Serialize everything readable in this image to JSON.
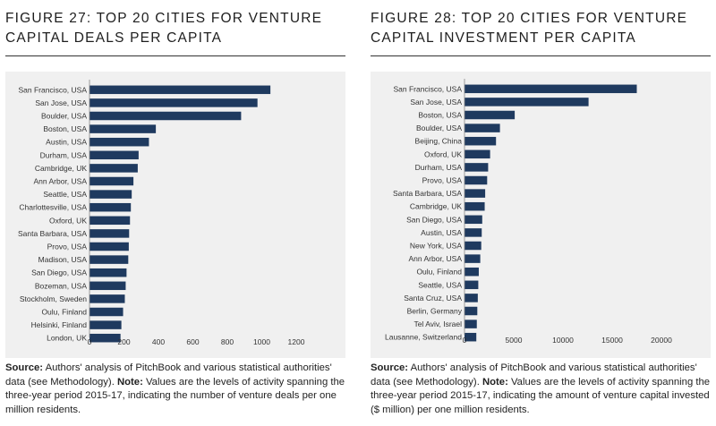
{
  "figure27": {
    "title_line1": "FIGURE 27: TOP 20 CITIES FOR VENTURE",
    "title_line2": "CAPITAL DEALS PER CAPITA",
    "source_label": "Source:",
    "source_text": "Authors' analysis of PitchBook and various statistical authorities' data (see Methodology).",
    "note_label": "Note:",
    "note_text": "Values are the levels of activity spanning the three-year period 2015-17, indicating the number of venture deals per one million residents."
  },
  "figure28": {
    "title_line1": "FIGURE 28: TOP 20 CITIES FOR VENTURE",
    "title_line2": "CAPITAL INVESTMENT PER CAPITA",
    "source_label": "Source:",
    "source_text": "Authors' analysis of PitchBook and various statistical authorities' data (see Methodology).",
    "note_label": "Note:",
    "note_text": "Values are the levels of activity spanning the three-year period 2015-17, indicating the amount of venture capital invested ($ million) per one million residents."
  },
  "colors": {
    "bar": "#1f3a5f",
    "plot_bg": "#f0f0f0",
    "axis": "#888888"
  },
  "chart_data": [
    {
      "type": "bar",
      "orientation": "horizontal",
      "title": "FIGURE 27: TOP 20 CITIES FOR VENTURE CAPITAL DEALS PER CAPITA",
      "categories": [
        "San Francisco, USA",
        "San Jose, USA",
        "Boulder, USA",
        "Boston, USA",
        "Austin, USA",
        "Durham, USA",
        "Cambridge, UK",
        "Ann Arbor, USA",
        "Seattle, USA",
        "Charlottesville, USA",
        "Oxford, UK",
        "Santa Barbara, USA",
        "Provo, USA",
        "Madison, USA",
        "San Diego, USA",
        "Bozeman, USA",
        "Stockholm, Sweden",
        "Oulu, Finland",
        "Helsinki, Finland",
        "London, UK"
      ],
      "values": [
        1050,
        975,
        880,
        385,
        345,
        285,
        280,
        255,
        245,
        240,
        235,
        230,
        228,
        225,
        215,
        210,
        205,
        195,
        185,
        180
      ],
      "xlim": [
        0,
        1200
      ],
      "xticks": [
        0,
        200,
        400,
        600,
        800,
        1000,
        1200
      ],
      "tick_labels": [
        "0",
        "200",
        "400",
        "600",
        "800",
        "1000",
        "1200"
      ],
      "xlabel": "",
      "ylabel": ""
    },
    {
      "type": "bar",
      "orientation": "horizontal",
      "title": "FIGURE 28: TOP 20 CITIES FOR VENTURE CAPITAL INVESTMENT PER CAPITA",
      "categories": [
        "San Francisco, USA",
        "San Jose, USA",
        "Boston, USA",
        "Boulder, USA",
        "Beijing, China",
        "Oxford, UK",
        "Durham, USA",
        "Provo, USA",
        "Santa Barbara, USA",
        "Cambridge, UK",
        "San Diego, USA",
        "Austin, USA",
        "New York, USA",
        "Ann Arbor, USA",
        "Oulu, Finland",
        "Seattle, USA",
        "Santa Cruz, USA",
        "Berlin, Germany",
        "Tel Aviv, Israel",
        "Lausanne, Switzerland"
      ],
      "values": [
        17500,
        12600,
        5100,
        3600,
        3200,
        2600,
        2400,
        2300,
        2100,
        2050,
        1800,
        1750,
        1700,
        1600,
        1450,
        1400,
        1350,
        1300,
        1250,
        1200
      ],
      "xlim": [
        0,
        20000
      ],
      "xticks": [
        0,
        5000,
        10000,
        15000,
        20000
      ],
      "tick_labels": [
        "0",
        "5000",
        "10000",
        "15000",
        "20000"
      ],
      "xlabel": "",
      "ylabel": ""
    }
  ]
}
